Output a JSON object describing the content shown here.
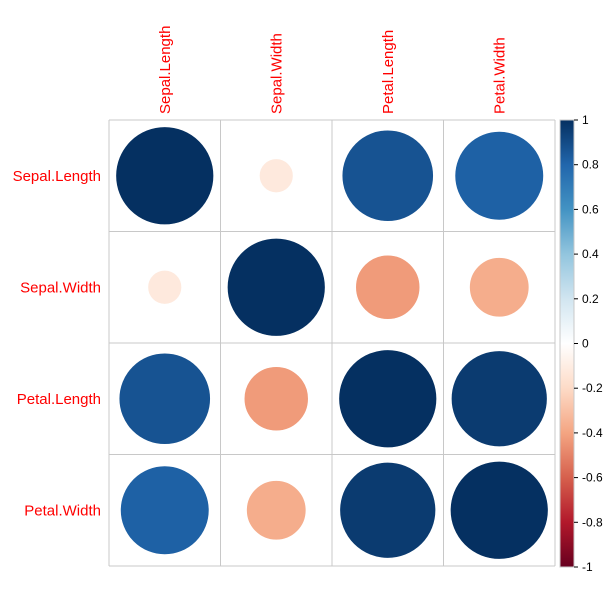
{
  "chart_data": {
    "type": "heatmap",
    "variables": [
      "Sepal.Length",
      "Sepal.Width",
      "Petal.Length",
      "Petal.Width"
    ],
    "matrix": [
      [
        1.0,
        -0.12,
        0.87,
        0.82
      ],
      [
        -0.12,
        1.0,
        -0.43,
        -0.37
      ],
      [
        0.87,
        -0.43,
        1.0,
        0.96
      ],
      [
        0.82,
        -0.37,
        0.96,
        1.0
      ]
    ],
    "method": "circle",
    "label_color": "#ff0000",
    "colorbar": {
      "range": [
        -1,
        1
      ],
      "ticks": [
        1,
        0.8,
        0.6,
        0.4,
        0.2,
        0,
        -0.2,
        -0.4,
        -0.6,
        -0.8,
        -1
      ],
      "tick_labels": [
        "1",
        "0.8",
        "0.6",
        "0.4",
        "0.2",
        "0",
        "-0.2",
        "-0.4",
        "-0.6",
        "-0.8",
        "-1"
      ],
      "colors": [
        "#67001F",
        "#B2182B",
        "#D6604D",
        "#F4A582",
        "#FDDBC7",
        "#FFFFFF",
        "#D1E5F0",
        "#92C5DE",
        "#4393C3",
        "#2166AC",
        "#053061"
      ]
    }
  }
}
